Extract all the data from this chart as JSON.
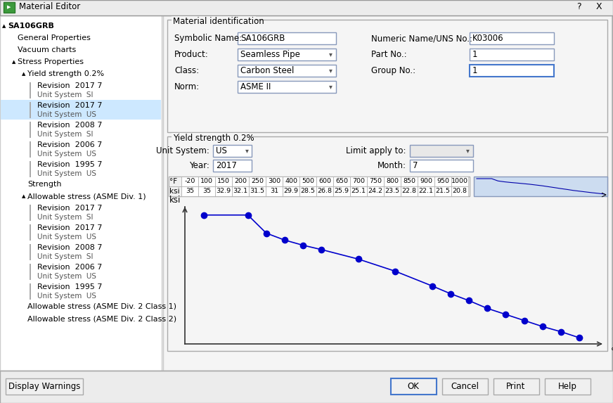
{
  "title": "Material Editor",
  "window_bg": "#f0f0f0",
  "panel_bg": "#ffffff",
  "tree_bg": "#ffffff",
  "selected_bg": "#cce8ff",
  "border_color": "#adadad",
  "mat_id": {
    "symbolic_name": "SA106GRB",
    "numeric_name": "K03006",
    "product": "Seamless Pipe",
    "part_no": "1",
    "class_val": "Carbon Steel",
    "group_no": "1",
    "norm": "ASME II"
  },
  "yield": {
    "unit_system": "US",
    "year": "2017",
    "month": "7",
    "temp_row": [
      "-20",
      "100",
      "150",
      "200",
      "250",
      "300",
      "400",
      "500",
      "600",
      "650",
      "700",
      "750",
      "800",
      "850",
      "900",
      "950",
      "1000"
    ],
    "ksi_row": [
      "35",
      "35",
      "32.9",
      "32.1",
      "31.5",
      "31",
      "29.9",
      "28.5",
      "26.8",
      "25.9",
      "25.1",
      "24.2",
      "23.5",
      "22.8",
      "22.1",
      "21.5",
      "20.8"
    ],
    "temp_values": [
      -20,
      100,
      150,
      200,
      250,
      300,
      400,
      500,
      600,
      650,
      700,
      750,
      800,
      850,
      900,
      950,
      1000
    ],
    "ksi_values": [
      35,
      35,
      32.9,
      32.1,
      31.5,
      31,
      29.9,
      28.5,
      26.8,
      25.9,
      25.1,
      24.2,
      23.5,
      22.8,
      22.1,
      21.5,
      20.8
    ]
  },
  "line_color": "#0000cc",
  "buttons": [
    "Display Warnings",
    "OK",
    "Cancel",
    "Print",
    "Help"
  ],
  "tree_data": [
    [
      0,
      "SA106GRB",
      "",
      true,
      true,
      true,
      false
    ],
    [
      1,
      "General Properties",
      "",
      false,
      false,
      false,
      false
    ],
    [
      1,
      "Vacuum charts",
      "",
      false,
      false,
      false,
      false
    ],
    [
      1,
      "Stress Properties",
      "",
      false,
      true,
      true,
      false
    ],
    [
      2,
      "Yield strength 0.2%",
      "",
      false,
      true,
      true,
      false
    ],
    [
      3,
      "Revision  2017 7",
      "Unit System  SI",
      false,
      false,
      false,
      false
    ],
    [
      3,
      "Revision  2017 7",
      "Unit System  US",
      false,
      false,
      false,
      true
    ],
    [
      3,
      "Revision  2008 7",
      "Unit System  SI",
      false,
      false,
      false,
      false
    ],
    [
      3,
      "Revision  2006 7",
      "Unit System  US",
      false,
      false,
      false,
      false
    ],
    [
      3,
      "Revision  1995 7",
      "Unit System  US",
      false,
      false,
      false,
      false
    ],
    [
      2,
      "Strength",
      "",
      false,
      false,
      false,
      false
    ],
    [
      2,
      "Allowable stress (ASME Div. 1)",
      "",
      false,
      true,
      true,
      false
    ],
    [
      3,
      "Revision  2017 7",
      "Unit System  SI",
      false,
      false,
      false,
      false
    ],
    [
      3,
      "Revision  2017 7",
      "Unit System  US",
      false,
      false,
      false,
      false
    ],
    [
      3,
      "Revision  2008 7",
      "Unit System  SI",
      false,
      false,
      false,
      false
    ],
    [
      3,
      "Revision  2006 7",
      "Unit System  US",
      false,
      false,
      false,
      false
    ],
    [
      3,
      "Revision  1995 7",
      "Unit System  US",
      false,
      false,
      false,
      false
    ],
    [
      2,
      "Allowable stress (ASME Div. 2 Class 1)",
      "",
      false,
      false,
      false,
      false
    ],
    [
      2,
      "Allowable stress (ASME Div. 2 Class 2)",
      "",
      false,
      false,
      false,
      false
    ]
  ]
}
